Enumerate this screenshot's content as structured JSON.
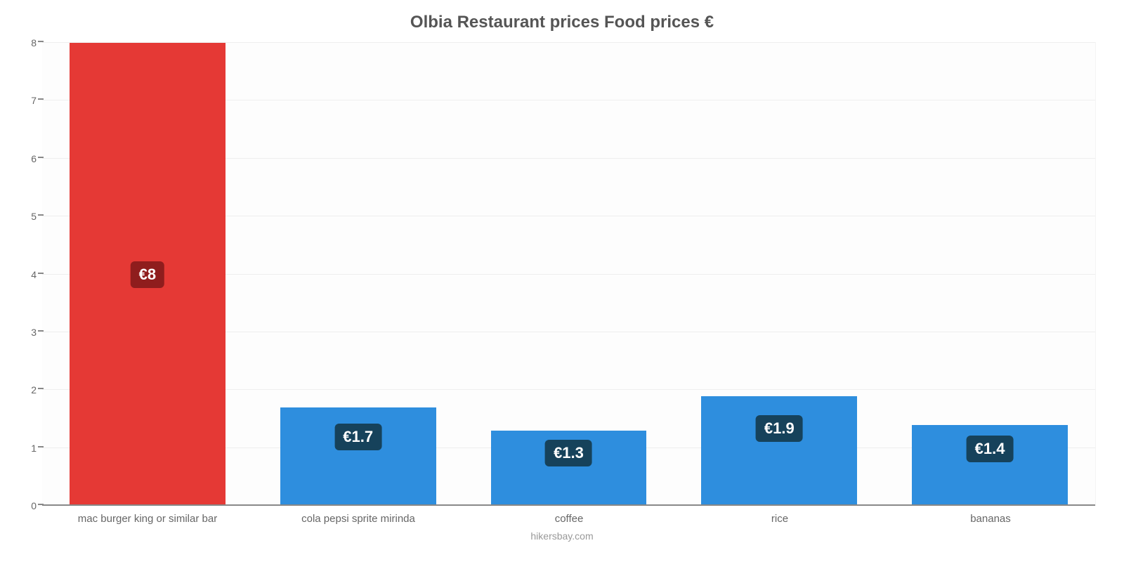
{
  "chart": {
    "type": "bar",
    "title": "Olbia Restaurant prices Food prices €",
    "title_fontsize": 24,
    "title_color": "#555555",
    "categories": [
      "mac burger king or similar bar",
      "cola pepsi sprite mirinda",
      "coffee",
      "rice",
      "bananas"
    ],
    "values": [
      8,
      1.7,
      1.3,
      1.9,
      1.4
    ],
    "value_labels": [
      "€8",
      "€1.7",
      "€1.3",
      "€1.9",
      "€1.4"
    ],
    "bar_colors": [
      "#e53935",
      "#2e8ede",
      "#2e8ede",
      "#2e8ede",
      "#2e8ede"
    ],
    "label_badge_colors": [
      "#8f1d1d",
      "#16425b",
      "#16425b",
      "#16425b",
      "#16425b"
    ],
    "ylim": [
      0,
      8
    ],
    "ytick_step": 1,
    "yticks": [
      0,
      1,
      2,
      3,
      4,
      5,
      6,
      7,
      8
    ],
    "grid_color": "#eeeeee",
    "background_color": "#fdfdfd",
    "axis_color": "#888888",
    "bar_width": 0.74,
    "label_fontsize": 22,
    "xlabel_fontsize": 15,
    "xlabel_color": "#666666",
    "footer": "hikersbay.com",
    "footer_color": "#999999"
  }
}
